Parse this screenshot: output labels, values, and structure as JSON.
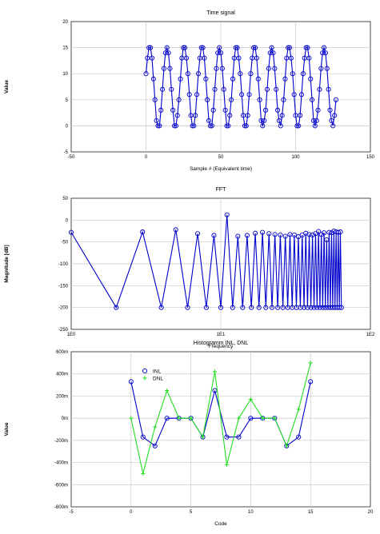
{
  "chart_data": [
    {
      "type": "line",
      "title": "Time signal",
      "xlabel": "Sample # (Equivalent time)",
      "ylabel": "Value",
      "xlim": [
        -50,
        150
      ],
      "ylim": [
        -5,
        20
      ],
      "xticks": [
        "-50",
        "0",
        "50",
        "100",
        "150"
      ],
      "xtick_values": [
        -50,
        0,
        50,
        100,
        150
      ],
      "yticks": [
        "-5",
        "0",
        "5",
        "10",
        "15",
        "20"
      ],
      "ytick_values": [
        -5,
        0,
        5,
        10,
        15,
        20
      ],
      "grid": true,
      "series_color": "#0000cc",
      "marker": "circle",
      "x": [
        0,
        1,
        2,
        3,
        4,
        5,
        6,
        7,
        8,
        9,
        10,
        11,
        12,
        13,
        14,
        15,
        16,
        17,
        18,
        19,
        20,
        21,
        22,
        23,
        24,
        25,
        26,
        27,
        28,
        29,
        30,
        31,
        32,
        33,
        34,
        35,
        36,
        37,
        38,
        39,
        40,
        41,
        42,
        43,
        44,
        45,
        46,
        47,
        48,
        49,
        50,
        51,
        52,
        53,
        54,
        55,
        56,
        57,
        58,
        59,
        60,
        61,
        62,
        63,
        64,
        65,
        66,
        67,
        68,
        69,
        70,
        71,
        72,
        73,
        74,
        75,
        76,
        77,
        78,
        79,
        80,
        81,
        82,
        83,
        84,
        85,
        86,
        87,
        88,
        89,
        90,
        91,
        92,
        93,
        94,
        95,
        96,
        97,
        98,
        99,
        100,
        101,
        102,
        103,
        104,
        105,
        106,
        107,
        108,
        109,
        110,
        111,
        112,
        113,
        114,
        115,
        116,
        117,
        118,
        119,
        120,
        121,
        122,
        123,
        124,
        125,
        126,
        127
      ],
      "y": [
        10,
        13,
        15,
        15,
        13,
        9,
        5,
        1,
        0,
        0,
        3,
        7,
        11,
        14,
        15,
        14,
        11,
        7,
        3,
        0,
        0,
        2,
        5,
        9,
        13,
        15,
        15,
        13,
        10,
        6,
        2,
        0,
        0,
        2,
        6,
        10,
        13,
        15,
        15,
        13,
        9,
        5,
        1,
        0,
        0,
        3,
        7,
        11,
        14,
        15,
        14,
        11,
        7,
        3,
        0,
        0,
        2,
        5,
        9,
        13,
        15,
        15,
        13,
        10,
        6,
        2,
        0,
        0,
        2,
        6,
        10,
        13,
        15,
        15,
        13,
        9,
        5,
        1,
        0,
        1,
        3,
        7,
        11,
        14,
        15,
        14,
        11,
        7,
        3,
        1,
        0,
        2,
        5,
        9,
        13,
        15,
        15,
        13,
        10,
        6,
        2,
        0,
        0,
        2,
        6,
        10,
        13,
        15,
        15,
        13,
        9,
        5,
        1,
        0,
        1,
        3,
        7,
        11,
        14,
        15,
        14,
        11,
        7,
        3,
        1,
        0,
        2,
        5
      ]
    },
    {
      "type": "line",
      "title": "FFT",
      "xlabel": "Frequency",
      "ylabel": "Magnitude [dB]",
      "xscale": "log",
      "xlim": [
        1,
        100
      ],
      "ylim": [
        -250,
        50
      ],
      "xticks": [
        "1E0",
        "1E1",
        "1E2"
      ],
      "xtick_values": [
        1,
        10,
        100
      ],
      "yticks": [
        "-250",
        "-200",
        "-150",
        "-100",
        "-50",
        "0",
        "50"
      ],
      "ytick_values": [
        -250,
        -200,
        -150,
        -100,
        -50,
        0,
        50
      ],
      "grid": true,
      "series_color": "#0000cc",
      "marker": "circle",
      "x": [
        1,
        2,
        3,
        4,
        5,
        6,
        7,
        8,
        9,
        10,
        11,
        12,
        13,
        14,
        15,
        16,
        17,
        18,
        19,
        20,
        21,
        22,
        23,
        24,
        25,
        26,
        27,
        28,
        29,
        30,
        31,
        32,
        33,
        34,
        35,
        36,
        37,
        38,
        39,
        40,
        41,
        42,
        43,
        44,
        45,
        46,
        47,
        48,
        49,
        50,
        51,
        52,
        53,
        54,
        55,
        56,
        57,
        58,
        59,
        60,
        61,
        62,
        63,
        64
      ],
      "y": [
        -28,
        -200,
        -27,
        -200,
        -22,
        -200,
        -31,
        -200,
        -35,
        -200,
        12,
        -200,
        -37,
        -200,
        -35,
        -200,
        -30,
        -200,
        -28,
        -200,
        -31,
        -200,
        -33,
        -200,
        -34,
        -200,
        -37,
        -200,
        -33,
        -200,
        -34,
        -200,
        -38,
        -200,
        -34,
        -200,
        -30,
        -200,
        -33,
        -200,
        -34,
        -200,
        -31,
        -200,
        -26,
        -200,
        -33,
        -200,
        -29,
        -200,
        -45,
        -200,
        -28,
        -200,
        -29,
        -200,
        -25,
        -200,
        -27,
        -200,
        -28,
        -200,
        -27,
        -200
      ]
    },
    {
      "type": "line",
      "title": "Histogramm INL, DNL",
      "xlabel": "Code",
      "ylabel": "Value",
      "xlim": [
        -5,
        20
      ],
      "ylim": [
        -0.8,
        0.6
      ],
      "xticks": [
        "-5",
        "0",
        "5",
        "10",
        "15",
        "20"
      ],
      "xtick_values": [
        -5,
        0,
        5,
        10,
        15,
        20
      ],
      "yticks": [
        "-800m",
        "-600m",
        "-400m",
        "-200m",
        "0m",
        "200m",
        "400m",
        "600m"
      ],
      "ytick_values": [
        -0.8,
        -0.6,
        -0.4,
        -0.2,
        0,
        0.2,
        0.4,
        0.6
      ],
      "grid": true,
      "legend": "top-left",
      "x": [
        0,
        1,
        2,
        3,
        4,
        5,
        6,
        7,
        8,
        9,
        10,
        11,
        12,
        13,
        14,
        15
      ],
      "series": [
        {
          "name": "INL",
          "color": "#0000cc",
          "marker": "circle",
          "values": [
            0.33,
            -0.17,
            -0.25,
            0.0,
            0.0,
            0.0,
            -0.17,
            0.25,
            -0.17,
            -0.17,
            0.0,
            0.0,
            0.0,
            -0.25,
            -0.17,
            0.33
          ]
        },
        {
          "name": "DNL",
          "color": "#22dd22",
          "marker": "plus",
          "values": [
            0.0,
            -0.5,
            -0.08,
            0.25,
            0.0,
            0.0,
            -0.17,
            0.42,
            -0.42,
            0.0,
            0.17,
            0.0,
            0.0,
            -0.25,
            0.08,
            0.5
          ]
        }
      ]
    }
  ]
}
